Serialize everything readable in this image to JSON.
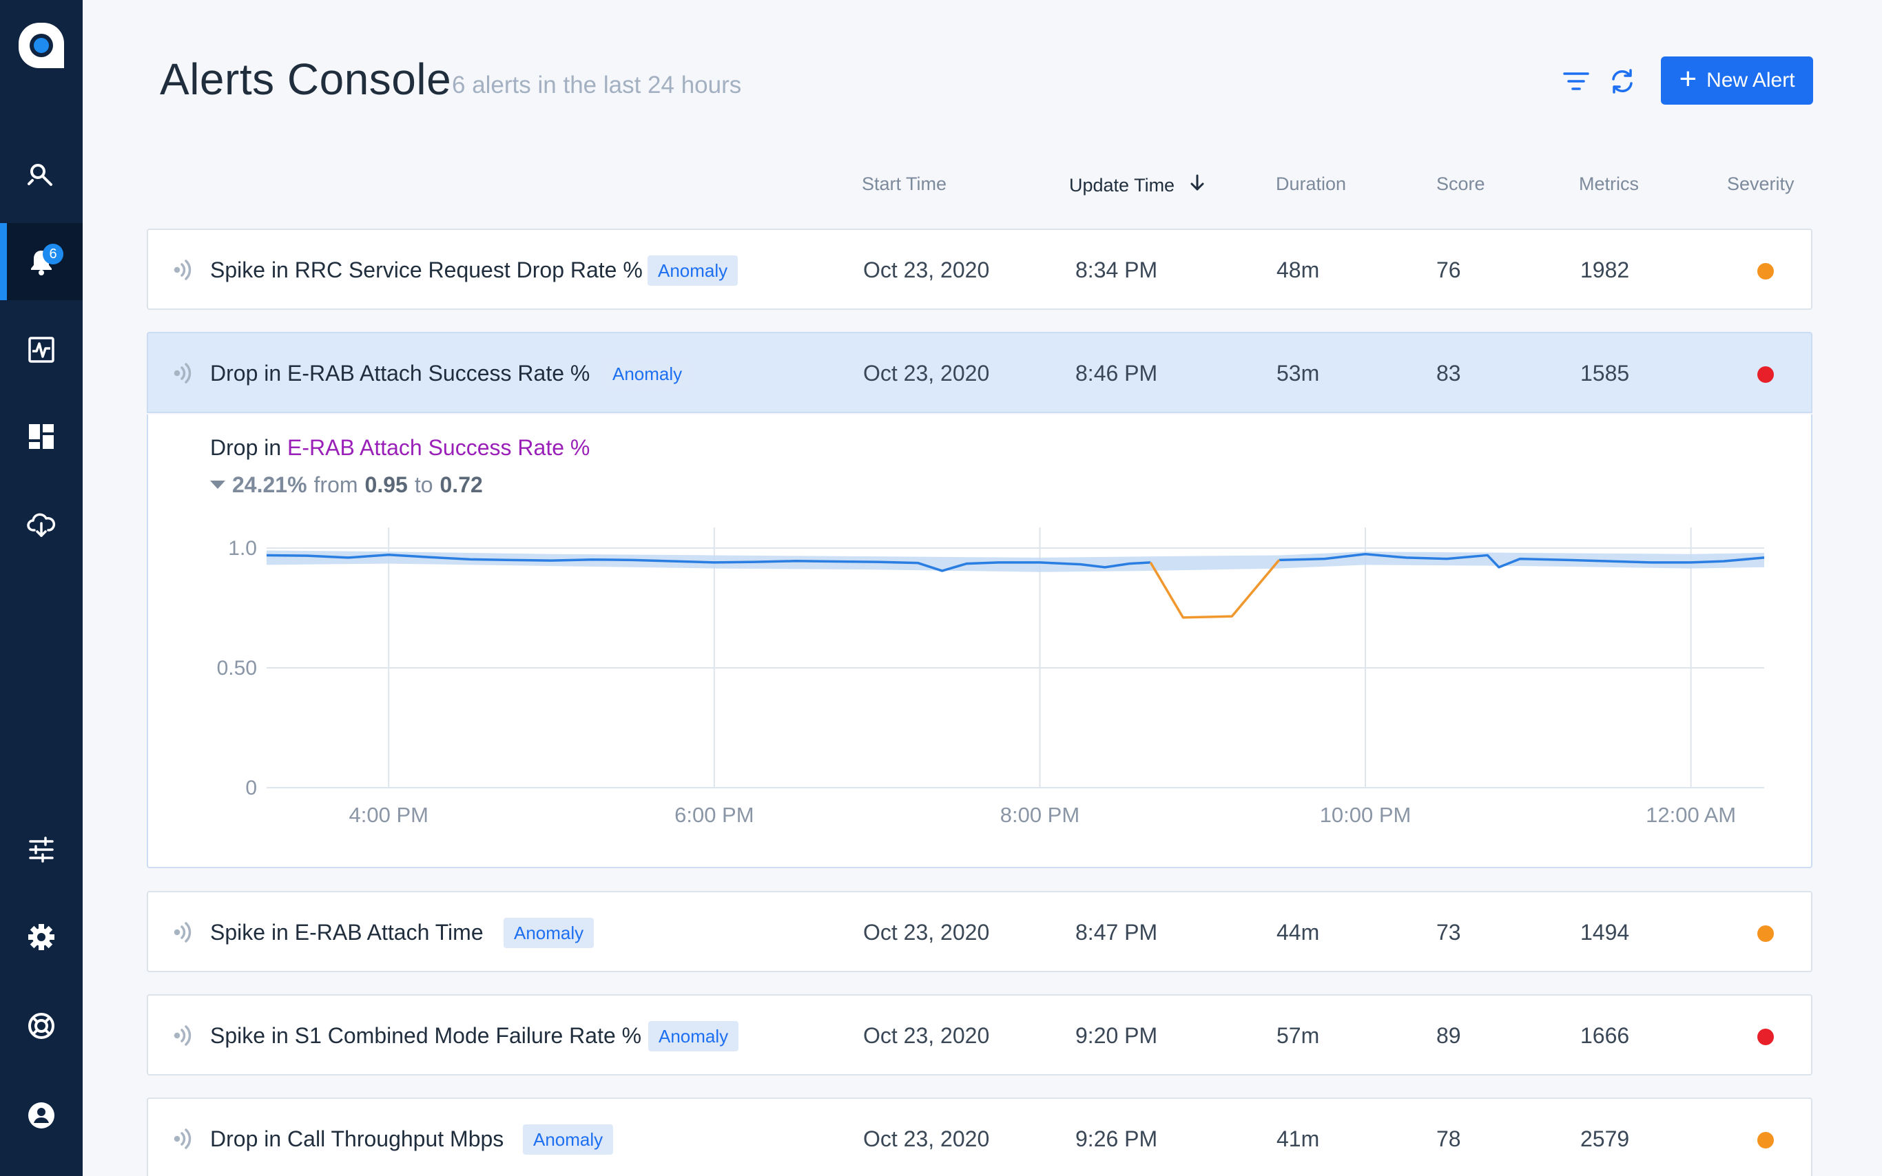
{
  "sidebar": {
    "items": [
      {
        "name": "explore",
        "icon": "search-wrench-icon"
      },
      {
        "name": "alerts",
        "icon": "bell-icon",
        "badge": "6",
        "active": true
      },
      {
        "name": "monitor",
        "icon": "pulse-icon"
      },
      {
        "name": "dashboards",
        "icon": "dashboard-icon"
      },
      {
        "name": "data-sources",
        "icon": "cloud-download-icon"
      },
      {
        "name": "preferences",
        "icon": "sliders-icon"
      },
      {
        "name": "settings",
        "icon": "gear-icon"
      },
      {
        "name": "help",
        "icon": "lifebuoy-icon"
      },
      {
        "name": "profile",
        "icon": "user-icon"
      }
    ]
  },
  "header": {
    "title": "Alerts Console",
    "subtitle": "6 alerts in the last 24 hours",
    "new_alert_label": "New Alert"
  },
  "columns": {
    "start_time": "Start Time",
    "update_time": "Update Time",
    "duration": "Duration",
    "score": "Score",
    "metrics": "Metrics",
    "severity": "Severity"
  },
  "colors": {
    "accent": "#1d6ff2",
    "severity_high": "#e8202a",
    "severity_medium": "#f5931f",
    "anomaly_line": "#f0982d",
    "series_line": "#2a7de1",
    "band": "#c5daf5"
  },
  "alerts": [
    {
      "title": "Spike in RRC Service Request Drop Rate %",
      "badge": "Anomaly",
      "start": "Oct 23, 2020",
      "update": "8:34 PM",
      "duration": "48m",
      "score": "76",
      "metrics": "1982",
      "severity": "medium"
    },
    {
      "title": "Drop in E-RAB Attach Success Rate %",
      "badge": "Anomaly",
      "start": "Oct 23, 2020",
      "update": "8:46 PM",
      "duration": "53m",
      "score": "83",
      "metrics": "1585",
      "severity": "high",
      "expanded": true
    },
    {
      "title": "Spike in E-RAB Attach Time",
      "badge": "Anomaly",
      "start": "Oct 23, 2020",
      "update": "8:47 PM",
      "duration": "44m",
      "score": "73",
      "metrics": "1494",
      "severity": "medium"
    },
    {
      "title": "Spike in S1 Combined Mode Failure Rate %",
      "badge": "Anomaly",
      "start": "Oct 23, 2020",
      "update": "9:20 PM",
      "duration": "57m",
      "score": "89",
      "metrics": "1666",
      "severity": "high"
    },
    {
      "title": "Drop in Call Throughput Mbps",
      "badge": "Anomaly",
      "start": "Oct 23, 2020",
      "update": "9:26 PM",
      "duration": "41m",
      "score": "78",
      "metrics": "2579",
      "severity": "medium"
    }
  ],
  "detail": {
    "prefix": "Drop in",
    "metric": "E-RAB Attach Success Rate %",
    "change_pct": "24.21%",
    "from_word": "from",
    "from_value": "0.95",
    "to_word": "to",
    "to_value": "0.72"
  },
  "chart_data": {
    "type": "line",
    "x_ticks": [
      "4:00 PM",
      "6:00 PM",
      "8:00 PM",
      "10:00 PM",
      "12:00 AM"
    ],
    "y_ticks": [
      "1.0",
      "0.50",
      "0"
    ],
    "ylim": [
      0,
      1.0
    ],
    "xlim_hours": [
      15.25,
      24.45
    ],
    "grid": true,
    "series": [
      {
        "points": [
          [
            15.25,
            0.97
          ],
          [
            15.5,
            0.968
          ],
          [
            15.75,
            0.96
          ],
          [
            16.0,
            0.972
          ],
          [
            16.25,
            0.962
          ],
          [
            16.5,
            0.953
          ],
          [
            16.75,
            0.95
          ],
          [
            17.0,
            0.948
          ],
          [
            17.25,
            0.952
          ],
          [
            17.5,
            0.95
          ],
          [
            17.75,
            0.945
          ],
          [
            18.0,
            0.94
          ],
          [
            18.25,
            0.942
          ],
          [
            18.5,
            0.946
          ],
          [
            18.75,
            0.944
          ],
          [
            19.0,
            0.942
          ],
          [
            19.25,
            0.938
          ],
          [
            19.4,
            0.905
          ],
          [
            19.55,
            0.935
          ],
          [
            19.75,
            0.94
          ],
          [
            20.0,
            0.94
          ],
          [
            20.25,
            0.932
          ],
          [
            20.4,
            0.92
          ],
          [
            20.55,
            0.935
          ],
          [
            20.68,
            0.94
          ],
          [
            20.88,
            0.71
          ],
          [
            21.18,
            0.715
          ],
          [
            21.47,
            0.95
          ],
          [
            21.75,
            0.955
          ],
          [
            22.0,
            0.975
          ],
          [
            22.25,
            0.96
          ],
          [
            22.5,
            0.955
          ],
          [
            22.75,
            0.97
          ],
          [
            22.82,
            0.92
          ],
          [
            22.95,
            0.955
          ],
          [
            23.25,
            0.95
          ],
          [
            23.5,
            0.945
          ],
          [
            23.75,
            0.94
          ],
          [
            24.0,
            0.94
          ],
          [
            24.2,
            0.945
          ],
          [
            24.45,
            0.96
          ]
        ],
        "anomaly_range_hours": [
          20.68,
          21.47
        ],
        "band": [
          [
            15.25,
            0.99,
            0.93
          ],
          [
            16.0,
            0.985,
            0.935
          ],
          [
            17.0,
            0.975,
            0.925
          ],
          [
            18.0,
            0.97,
            0.915
          ],
          [
            19.0,
            0.965,
            0.91
          ],
          [
            20.0,
            0.96,
            0.9
          ],
          [
            20.68,
            0.965,
            0.905
          ],
          [
            21.47,
            0.97,
            0.915
          ],
          [
            22.0,
            0.985,
            0.93
          ],
          [
            23.0,
            0.98,
            0.925
          ],
          [
            24.0,
            0.975,
            0.915
          ],
          [
            24.45,
            0.98,
            0.92
          ]
        ]
      }
    ]
  }
}
